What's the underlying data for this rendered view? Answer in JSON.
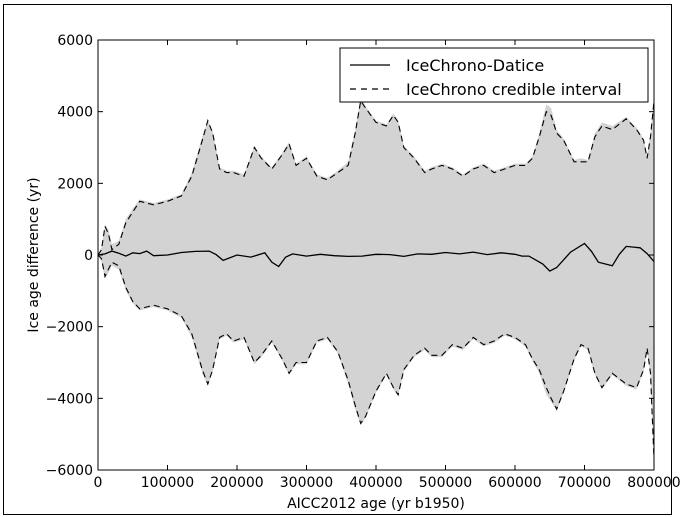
{
  "chart_data": {
    "type": "line",
    "title": "",
    "xlabel": "AICC2012 age (yr b1950)",
    "ylabel": "Ice age difference (yr)",
    "xlim": [
      0,
      800000
    ],
    "ylim": [
      -6000,
      6000
    ],
    "xticks": [
      0,
      100000,
      200000,
      300000,
      400000,
      500000,
      600000,
      700000,
      800000
    ],
    "xtick_labels": [
      "0",
      "100000",
      "200000",
      "300000",
      "400000",
      "500000",
      "600000",
      "700000",
      "800000"
    ],
    "yticks": [
      -6000,
      -4000,
      -2000,
      0,
      2000,
      4000,
      6000
    ],
    "ytick_labels": [
      "−6000",
      "−4000",
      "−2000",
      "0",
      "2000",
      "4000",
      "6000"
    ],
    "grid": false,
    "legend_position": "top-right",
    "colors": {
      "band": "#d3d3d3",
      "line": "#000000"
    },
    "series": [
      {
        "name": "IceChrono-Datice",
        "style": "solid",
        "x": [
          0,
          10000,
          20000,
          30000,
          40000,
          50000,
          60000,
          70000,
          80000,
          100000,
          120000,
          140000,
          160000,
          170000,
          180000,
          200000,
          220000,
          240000,
          250000,
          260000,
          270000,
          280000,
          300000,
          320000,
          340000,
          360000,
          380000,
          400000,
          420000,
          440000,
          460000,
          480000,
          500000,
          520000,
          540000,
          560000,
          580000,
          600000,
          610000,
          620000,
          640000,
          650000,
          660000,
          680000,
          700000,
          710000,
          720000,
          740000,
          750000,
          760000,
          780000,
          790000,
          800000
        ],
        "y": [
          0,
          30,
          110,
          50,
          -30,
          60,
          40,
          110,
          -20,
          0,
          70,
          100,
          110,
          10,
          -150,
          0,
          -60,
          60,
          -200,
          -320,
          -60,
          30,
          -30,
          20,
          -20,
          -40,
          -30,
          20,
          10,
          -40,
          30,
          20,
          70,
          30,
          80,
          10,
          60,
          20,
          -30,
          -30,
          -250,
          -450,
          -350,
          80,
          320,
          100,
          -200,
          -300,
          20,
          240,
          200,
          40,
          -180
        ]
      },
      {
        "name": "IceChrono credible interval",
        "style": "dashed",
        "x": [
          0,
          5000,
          10000,
          15000,
          20000,
          30000,
          40000,
          50000,
          60000,
          80000,
          100000,
          120000,
          135000,
          150000,
          158000,
          165000,
          175000,
          185000,
          195000,
          210000,
          225000,
          235000,
          250000,
          265000,
          275000,
          285000,
          300000,
          315000,
          330000,
          345000,
          360000,
          370000,
          378000,
          385000,
          400000,
          415000,
          425000,
          432000,
          440000,
          455000,
          470000,
          480000,
          495000,
          510000,
          525000,
          540000,
          555000,
          570000,
          585000,
          600000,
          615000,
          625000,
          635000,
          645000,
          652000,
          660000,
          670000,
          685000,
          695000,
          705000,
          715000,
          725000,
          740000,
          760000,
          775000,
          785000,
          790000,
          795000,
          800000
        ],
        "upper": [
          0,
          150,
          800,
          600,
          150,
          300,
          900,
          1200,
          1500,
          1400,
          1500,
          1650,
          2200,
          3200,
          3750,
          3400,
          2400,
          2300,
          2300,
          2200,
          3000,
          2700,
          2400,
          2800,
          3100,
          2500,
          2700,
          2200,
          2100,
          2300,
          2500,
          3400,
          4300,
          4100,
          3700,
          3600,
          3900,
          3700,
          3000,
          2700,
          2300,
          2400,
          2500,
          2400,
          2200,
          2400,
          2500,
          2300,
          2400,
          2500,
          2500,
          2700,
          3300,
          4000,
          3900,
          3400,
          3200,
          2600,
          2600,
          2600,
          3300,
          3600,
          3500,
          3800,
          3500,
          3200,
          2700,
          3300,
          4300
        ],
        "lower": [
          0,
          -100,
          -600,
          -400,
          -200,
          -300,
          -900,
          -1300,
          -1500,
          -1400,
          -1500,
          -1700,
          -2200,
          -3200,
          -3600,
          -3200,
          -2300,
          -2200,
          -2400,
          -2300,
          -3000,
          -2800,
          -2400,
          -2900,
          -3300,
          -3000,
          -3000,
          -2400,
          -2300,
          -2700,
          -3500,
          -4200,
          -4700,
          -4500,
          -3800,
          -3300,
          -3700,
          -3900,
          -3200,
          -2800,
          -2600,
          -2800,
          -2800,
          -2500,
          -2600,
          -2300,
          -2500,
          -2400,
          -2200,
          -2300,
          -2500,
          -2900,
          -3200,
          -3700,
          -4000,
          -4300,
          -3800,
          -2900,
          -2500,
          -2600,
          -3300,
          -3700,
          -3300,
          -3600,
          -3700,
          -3200,
          -2600,
          -3300,
          -5700
        ]
      }
    ],
    "band": {
      "label": "",
      "x": [
        0,
        5000,
        10000,
        15000,
        20000,
        30000,
        40000,
        50000,
        60000,
        80000,
        100000,
        120000,
        135000,
        150000,
        158000,
        165000,
        175000,
        185000,
        195000,
        210000,
        225000,
        235000,
        250000,
        265000,
        275000,
        285000,
        300000,
        315000,
        330000,
        345000,
        360000,
        370000,
        378000,
        385000,
        400000,
        415000,
        425000,
        432000,
        440000,
        455000,
        470000,
        480000,
        495000,
        510000,
        525000,
        540000,
        555000,
        570000,
        585000,
        600000,
        615000,
        625000,
        635000,
        645000,
        652000,
        660000,
        670000,
        685000,
        695000,
        705000,
        715000,
        725000,
        740000,
        760000,
        775000,
        785000,
        790000,
        795000,
        800000
      ],
      "upper": [
        0,
        200,
        850,
        700,
        300,
        400,
        1000,
        1300,
        1550,
        1450,
        1550,
        1700,
        2300,
        3300,
        3750,
        3450,
        2450,
        2350,
        2350,
        2250,
        3050,
        2750,
        2450,
        2850,
        3150,
        2550,
        2750,
        2250,
        2150,
        2350,
        2600,
        3500,
        4400,
        4150,
        3750,
        3650,
        3950,
        3750,
        3050,
        2750,
        2350,
        2450,
        2550,
        2450,
        2250,
        2450,
        2550,
        2350,
        2450,
        2550,
        2550,
        2750,
        3400,
        4200,
        4100,
        3500,
        3250,
        2650,
        2700,
        2650,
        3400,
        3700,
        3600,
        3850,
        3550,
        3250,
        2750,
        3400,
        4400
      ],
      "lower": [
        0,
        -200,
        -650,
        -500,
        -300,
        -400,
        -1000,
        -1350,
        -1550,
        -1450,
        -1550,
        -1750,
        -2300,
        -3300,
        -3650,
        -3250,
        -2350,
        -2250,
        -2450,
        -2350,
        -3050,
        -2850,
        -2450,
        -2950,
        -3350,
        -3050,
        -3050,
        -2450,
        -2350,
        -2750,
        -3600,
        -4300,
        -4750,
        -4550,
        -3850,
        -3350,
        -3750,
        -3950,
        -3250,
        -2850,
        -2650,
        -2850,
        -2850,
        -2550,
        -2650,
        -2350,
        -2550,
        -2450,
        -2250,
        -2350,
        -2550,
        -2950,
        -3300,
        -3900,
        -4100,
        -4350,
        -3850,
        -2950,
        -2550,
        -2650,
        -3350,
        -3750,
        -3350,
        -3650,
        -3750,
        -3250,
        -2650,
        -3350,
        -5800
      ]
    }
  }
}
